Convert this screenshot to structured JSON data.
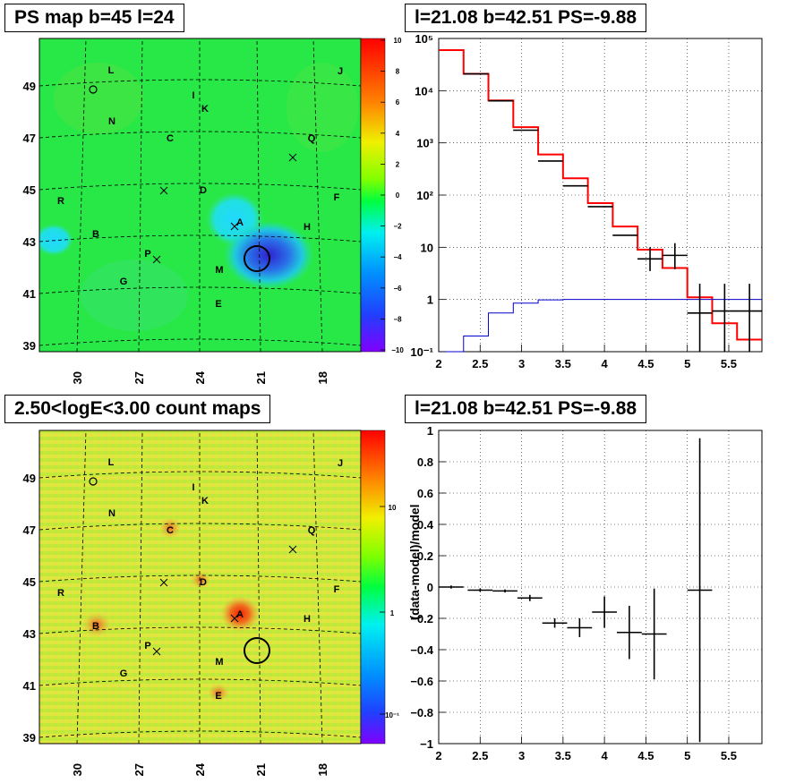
{
  "titles": {
    "psmap": "PS map b=45 l=24",
    "spectrum": "l=21.08 b=42.51 PS=-9.88",
    "countmap": "2.50<logE<3.00 count maps",
    "residual": "l=21.08 b=42.51 PS=-9.88"
  },
  "colors": {
    "data": "#000000",
    "model": "#ff0000",
    "background": "#0000cc"
  },
  "chart_data": [
    {
      "type": "heatmap",
      "title": "PS map b=45 l=24",
      "x_ticks": [
        "30",
        "27",
        "24",
        "21",
        "18"
      ],
      "y_ticks": [
        "49",
        "47",
        "45",
        "43",
        "41",
        "39"
      ],
      "colorbar_ticks": [
        "10",
        "8",
        "6",
        "4",
        "2",
        "0",
        "−2",
        "−4",
        "−6",
        "−8",
        "−10"
      ],
      "colorbar_range": [
        -10,
        10
      ],
      "source_labels": [
        "L",
        "J",
        "O",
        "I",
        "K",
        "N",
        "C",
        "Q",
        "R",
        "D",
        "F",
        "A",
        "H",
        "B",
        "P",
        "M",
        "G",
        "E"
      ],
      "marker": {
        "type": "circle",
        "l": 21.08,
        "b": 42.51
      }
    },
    {
      "type": "line",
      "title": "l=21.08 b=42.51 PS=-9.88",
      "x_ticks": [
        "2",
        "2.5",
        "3",
        "3.5",
        "4",
        "4.5",
        "5",
        "5.5"
      ],
      "y_ticks": [
        "10⁻¹",
        "1",
        "10",
        "10²",
        "10³",
        "10⁴",
        "10⁵"
      ],
      "y_scale": "log",
      "xlim": [
        2,
        5.9
      ],
      "ylim": [
        0.1,
        100000
      ],
      "grid": true,
      "bin_edges": [
        2,
        2.3,
        2.6,
        2.9,
        3.2,
        3.5,
        3.8,
        4.1,
        4.4,
        4.7,
        5.0,
        5.3,
        5.6,
        5.9
      ],
      "series": [
        {
          "values": [
            60000,
            21000,
            6500,
            2000,
            600,
            210,
            70,
            25,
            9,
            4,
            1.1,
            0.35,
            0.17
          ]
        },
        {
          "values": [
            0.1,
            0.2,
            0.55,
            0.85,
            0.98,
            1.0,
            1.0,
            1.0,
            1.0,
            1.0,
            1.0,
            1.0,
            1.0
          ]
        }
      ],
      "data_points": [
        {
          "x": 2.45,
          "y": 21000
        },
        {
          "x": 2.75,
          "y": 6400
        },
        {
          "x": 3.05,
          "y": 1750
        },
        {
          "x": 3.35,
          "y": 450
        },
        {
          "x": 3.65,
          "y": 150
        },
        {
          "x": 3.95,
          "y": 60
        },
        {
          "x": 4.25,
          "y": 17
        },
        {
          "x": 4.55,
          "y": 6,
          "err": [
            3.5,
            10
          ]
        },
        {
          "x": 4.85,
          "y": 7,
          "err": [
            3.8,
            12
          ]
        },
        {
          "x": 5.15,
          "y": 0.55,
          "err": [
            0.1,
            2
          ]
        },
        {
          "x": 5.45,
          "y": 0.6,
          "err": [
            0.1,
            2
          ]
        },
        {
          "x": 5.75,
          "y": 0.6,
          "err": [
            0.1,
            2
          ]
        }
      ]
    },
    {
      "type": "heatmap",
      "title": "2.50<logE<3.00 count maps",
      "x_ticks": [
        "30",
        "27",
        "24",
        "21",
        "18"
      ],
      "y_ticks": [
        "49",
        "47",
        "45",
        "43",
        "41",
        "39"
      ],
      "colorbar_ticks": [
        "10",
        "1",
        "10⁻¹"
      ],
      "colorbar_scale": "log",
      "source_labels": [
        "L",
        "J",
        "O",
        "I",
        "K",
        "N",
        "C",
        "Q",
        "R",
        "D",
        "F",
        "A",
        "H",
        "B",
        "P",
        "M",
        "G",
        "E"
      ],
      "marker": {
        "type": "circle",
        "l": 21.08,
        "b": 42.51
      }
    },
    {
      "type": "scatter",
      "title": "l=21.08 b=42.51 PS=-9.88",
      "ylabel": "(data-model)/model",
      "x_ticks": [
        "2",
        "2.5",
        "3",
        "3.5",
        "4",
        "4.5",
        "5",
        "5.5"
      ],
      "y_ticks": [
        "1",
        "0.8",
        "0.6",
        "0.4",
        "0.2",
        "0",
        "−0.2",
        "−0.4",
        "−0.6",
        "−0.8",
        "−1"
      ],
      "xlim": [
        2,
        5.9
      ],
      "ylim": [
        -1,
        1
      ],
      "grid": true,
      "points": [
        {
          "x": 2.15,
          "y": 0.0,
          "xerr": 0.15,
          "yerr": 0.01
        },
        {
          "x": 2.5,
          "y": -0.02,
          "xerr": 0.15,
          "yerr": 0.01
        },
        {
          "x": 2.8,
          "y": -0.025,
          "xerr": 0.15,
          "yerr": 0.01
        },
        {
          "x": 3.1,
          "y": -0.07,
          "xerr": 0.15,
          "yerr": 0.02
        },
        {
          "x": 3.4,
          "y": -0.23,
          "xerr": 0.15,
          "yerr": 0.03
        },
        {
          "x": 3.7,
          "y": -0.26,
          "xerr": 0.15,
          "yerr": 0.06
        },
        {
          "x": 4.0,
          "y": -0.16,
          "xerr": 0.15,
          "yerr": 0.1
        },
        {
          "x": 4.3,
          "y": -0.29,
          "xerr": 0.15,
          "yerr": 0.17
        },
        {
          "x": 4.6,
          "y": -0.3,
          "xerr": 0.15,
          "yerr": 0.29
        },
        {
          "x": 5.15,
          "y": -0.02,
          "xerr": 0.15,
          "yerr": 0.97
        }
      ]
    }
  ]
}
